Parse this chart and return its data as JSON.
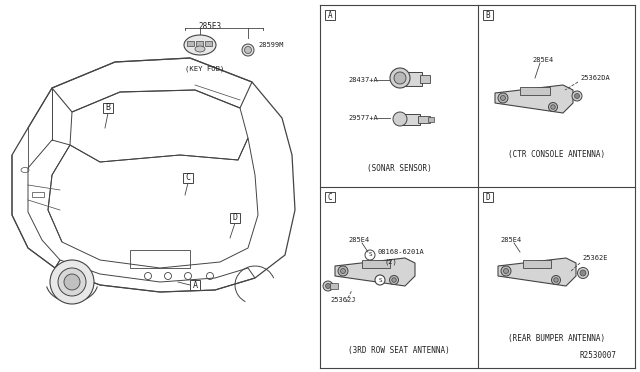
{
  "bg_color": "#ffffff",
  "border_color": "#888888",
  "line_color": "#444444",
  "text_color": "#222222",
  "fig_width": 6.4,
  "fig_height": 3.72,
  "diagram_ref": "R2530007",
  "parts": {
    "key_fob_group": "285E3",
    "key_fob_part": "28599M",
    "key_fob_caption": "(KEY FOB)",
    "sonar_part1": "28437+A",
    "sonar_part2": "29577+A",
    "sonar_caption": "(SONAR SENSOR)",
    "ctr_part1": "285E4",
    "ctr_part2": "25362DA",
    "ctr_caption": "(CTR CONSOLE ANTENNA)",
    "seat_part1": "285E4",
    "seat_bolt": "08168-6201A",
    "seat_bolt2": "(2)",
    "seat_part2": "25362J",
    "seat_caption": "(3RD ROW SEAT ANTENNA)",
    "bumper_part1": "285E4",
    "bumper_part2": "25362E",
    "bumper_caption": "(REAR BUMPER ANTENNA)"
  }
}
